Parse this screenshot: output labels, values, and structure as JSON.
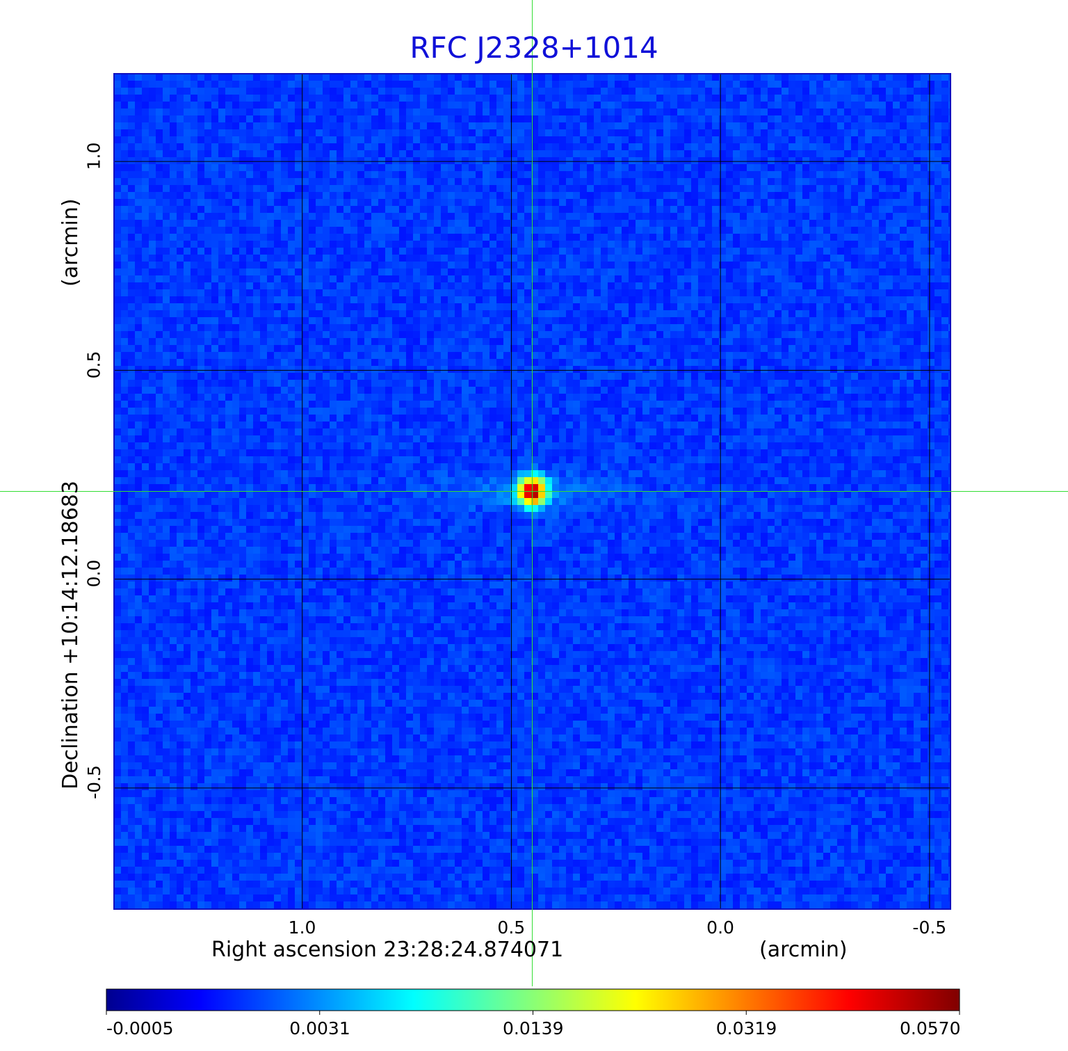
{
  "chart_data": {
    "type": "heatmap",
    "title": "RFC J2328+1014",
    "xlabel": "Right ascension  23:28:24.874071",
    "xunit": "(arcmin)",
    "ylabel": "Declination  +10:14:12.18683",
    "yunit": "(arcmin)",
    "x_range": [
      1.45,
      -0.55
    ],
    "y_range": [
      -0.79,
      1.21
    ],
    "x_ticks": [
      {
        "value": 1.0,
        "label": "1.0"
      },
      {
        "value": 0.5,
        "label": "0.5"
      },
      {
        "value": 0.0,
        "label": "0.0"
      },
      {
        "value": -0.5,
        "label": "-0.5"
      }
    ],
    "y_ticks": [
      {
        "value": 1.0,
        "label": "1.0"
      },
      {
        "value": 0.5,
        "label": "0.5"
      },
      {
        "value": 0.0,
        "label": "0.0"
      },
      {
        "value": -0.5,
        "label": "-0.5"
      }
    ],
    "grid": true,
    "peak": {
      "ra_offset": 0.45,
      "dec_offset": 0.21,
      "value": 0.057
    },
    "crosshair": {
      "ra_offset": 0.45,
      "dec_offset": 0.21
    },
    "colorbar": {
      "colormap": "jet",
      "ticks": [
        "-0.0005",
        "0.0031",
        "0.0139",
        "0.0319",
        "0.0570"
      ]
    }
  },
  "colors": {
    "title": "#1010d8",
    "crosshair": "#33dd33",
    "grid": "#000000"
  }
}
